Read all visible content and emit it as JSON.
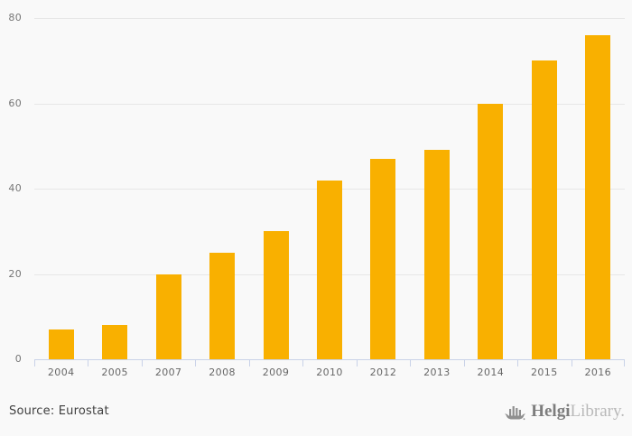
{
  "chart_data": {
    "type": "bar",
    "categories": [
      "2004",
      "2005",
      "2007",
      "2008",
      "2009",
      "2010",
      "2012",
      "2013",
      "2014",
      "2015",
      "2016"
    ],
    "values": [
      7,
      8,
      20,
      25,
      30,
      42,
      47,
      49,
      60,
      70,
      76
    ],
    "title": "",
    "xlabel": "",
    "ylabel": "",
    "ylim": [
      0,
      80
    ],
    "yticks": [
      0,
      20,
      40,
      60,
      80
    ],
    "grid": true,
    "legend": false,
    "bar_color": "#F9B000",
    "gridline_color": "#e7e7e7",
    "axis_color": "#c9d2e8",
    "background_color": "#f9f9f9"
  },
  "footer": {
    "source_label": "Source: Eurostat",
    "logo": {
      "icon": "helgi-ship-icon",
      "brand_primary": "Helgi",
      "brand_secondary": "Library."
    }
  }
}
